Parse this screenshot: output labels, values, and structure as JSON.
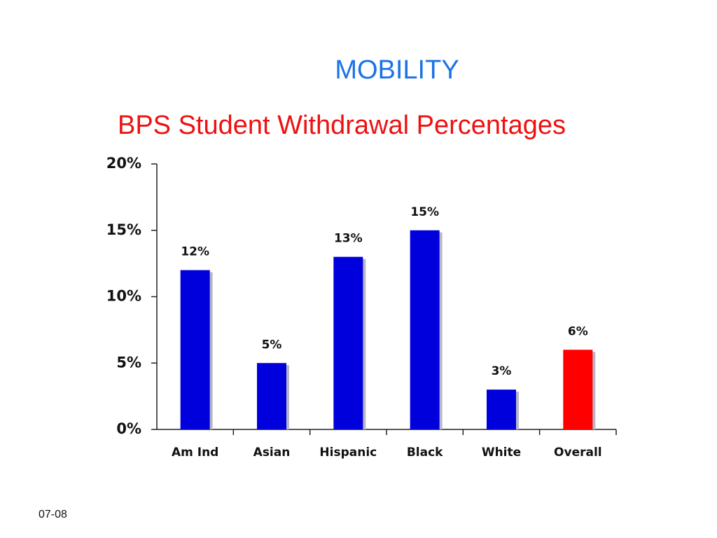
{
  "heading": "MOBILITY",
  "footer": "07-08",
  "chart_data": {
    "type": "bar",
    "title": "BPS Student Withdrawal Percentages",
    "categories": [
      "Am Ind",
      "Asian",
      "Hispanic",
      "Black",
      "White",
      "Overall"
    ],
    "values": [
      12,
      5,
      13,
      15,
      3,
      6
    ],
    "value_labels": [
      "12%",
      "5%",
      "13%",
      "15%",
      "3%",
      "6%"
    ],
    "colors": [
      "#0000dd",
      "#0000dd",
      "#0000dd",
      "#0000dd",
      "#0000dd",
      "#ff0000"
    ],
    "ylim": [
      0,
      20
    ],
    "yticks": [
      {
        "value": 0,
        "label": "0%"
      },
      {
        "value": 5,
        "label": "5%"
      },
      {
        "value": 10,
        "label": "10%"
      },
      {
        "value": 15,
        "label": "15%"
      },
      {
        "value": 20,
        "label": "20%"
      }
    ],
    "grid": false
  }
}
